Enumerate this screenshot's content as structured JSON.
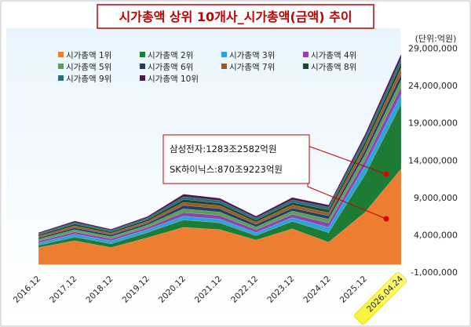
{
  "chart_data": {
    "type": "area",
    "stacked": true,
    "title": "시가총액 상위 10개사_시가총액(금액) 추이",
    "unit_label": "(단위:억원)",
    "categories": [
      "2016.12",
      "2017.12",
      "2018.12",
      "2019.12",
      "2020.12",
      "2021.12",
      "2022.12",
      "2023.12",
      "2024.12",
      "2025.12",
      "2026.04.24"
    ],
    "highlighted_category": "2026.04.24",
    "y_ticks": [
      "-1,000,000",
      "4,000,000",
      "9,000,000",
      "14,000,000",
      "19,000,000",
      "24,000,000",
      "29,000,000"
    ],
    "ylim": [
      -1000000,
      30000000
    ],
    "series": [
      {
        "name": "시가총액 1위",
        "color": "#ed7d31",
        "values": [
          2300000,
          3200000,
          2300000,
          3600000,
          5000000,
          4700000,
          3300000,
          4800000,
          3000000,
          7000000,
          12832582
        ]
      },
      {
        "name": "시가총액 2위",
        "color": "#1e7b34",
        "values": [
          300000,
          500000,
          500000,
          700000,
          1000000,
          900000,
          600000,
          1000000,
          1300000,
          5000000,
          8709223
        ]
      },
      {
        "name": "시가총액 3위",
        "color": "#2ea3d8",
        "values": [
          300000,
          400000,
          400000,
          400000,
          500000,
          500000,
          400000,
          500000,
          700000,
          1200000,
          1300000
        ]
      },
      {
        "name": "시가총액 4위",
        "color": "#8e44ad",
        "values": [
          250000,
          300000,
          300000,
          300000,
          500000,
          500000,
          400000,
          450000,
          600000,
          800000,
          1000000
        ]
      },
      {
        "name": "시가총액 5위",
        "color": "#5aa05a",
        "values": [
          250000,
          300000,
          250000,
          300000,
          500000,
          450000,
          350000,
          450000,
          500000,
          700000,
          900000
        ]
      },
      {
        "name": "시가총액 6위",
        "color": "#243f60",
        "values": [
          200000,
          250000,
          250000,
          250000,
          450000,
          450000,
          350000,
          400000,
          450000,
          600000,
          800000
        ]
      },
      {
        "name": "시가총액 7위",
        "color": "#9c5a2b",
        "values": [
          200000,
          250000,
          200000,
          250000,
          400000,
          400000,
          300000,
          400000,
          400000,
          600000,
          800000
        ]
      },
      {
        "name": "시가총액 8위",
        "color": "#1a4a2a",
        "values": [
          200000,
          250000,
          200000,
          250000,
          400000,
          350000,
          300000,
          350000,
          400000,
          550000,
          700000
        ]
      },
      {
        "name": "시가총액 9위",
        "color": "#2c6a80",
        "values": [
          150000,
          200000,
          200000,
          200000,
          350000,
          350000,
          250000,
          350000,
          350000,
          500000,
          600000
        ]
      },
      {
        "name": "시가총액 10위",
        "color": "#4a1a4a",
        "values": [
          150000,
          200000,
          150000,
          200000,
          350000,
          300000,
          250000,
          300000,
          300000,
          450000,
          600000
        ]
      }
    ],
    "annotation": {
      "lines": [
        "삼성전자:1283조2582억원",
        "SK하이닉스:870조9223억원"
      ]
    },
    "grid": false,
    "legend_position": "top-left"
  }
}
